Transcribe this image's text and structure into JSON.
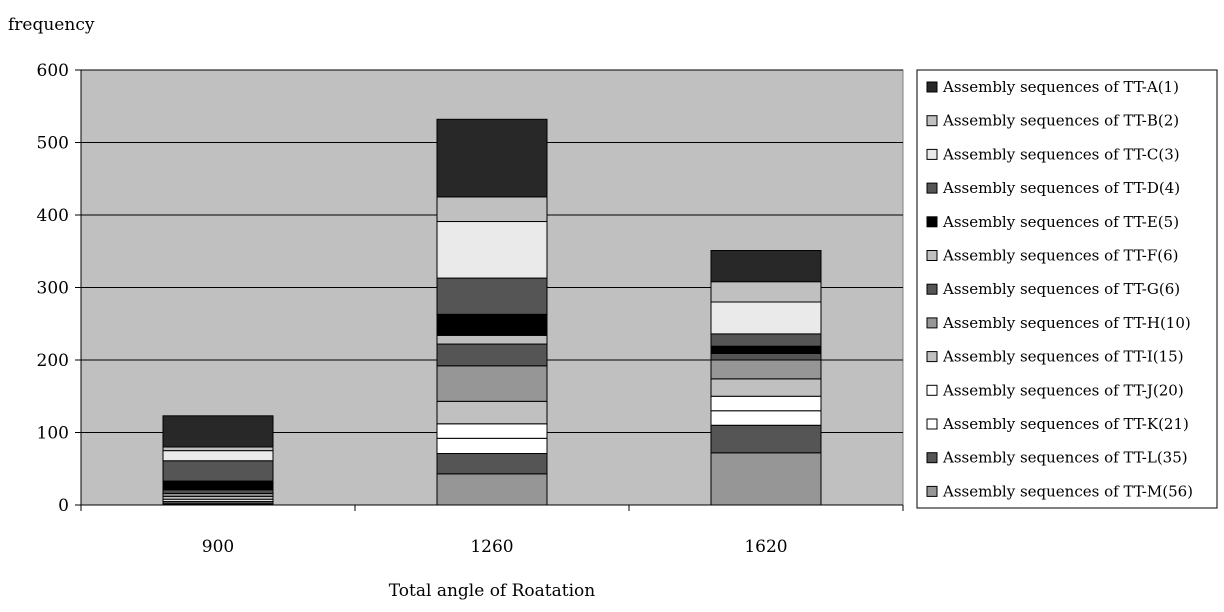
{
  "chart_data": {
    "type": "bar",
    "stacked": true,
    "title": "",
    "xlabel": "Total angle of Roatation",
    "ylabel": "frequency",
    "categories": [
      "900",
      "1260",
      "1620"
    ],
    "ylim": [
      0,
      600
    ],
    "yticks": [
      "0",
      "100",
      "200",
      "300",
      "400",
      "500",
      "600"
    ],
    "grid": true,
    "legend_position": "right",
    "plot_background": "#c0c0c0",
    "series": [
      {
        "name": "Assembly sequences of TT-M(56)",
        "color": "#969696",
        "values": [
          1,
          43,
          72
        ]
      },
      {
        "name": "Assembly sequences of TT-L(35)",
        "color": "#555555",
        "values": [
          2,
          28,
          38
        ]
      },
      {
        "name": "Assembly sequences of TT-K(21)",
        "color": "#ffffff",
        "values": [
          2,
          21,
          20
        ]
      },
      {
        "name": "Assembly sequences of TT-J(20)",
        "color": "#ffffff",
        "values": [
          3,
          20,
          20
        ]
      },
      {
        "name": "Assembly sequences of TT-I(15)",
        "color": "#c0c0c0",
        "values": [
          4,
          31,
          24
        ]
      },
      {
        "name": "Assembly sequences of TT-H(10)",
        "color": "#969696",
        "values": [
          4,
          49,
          26
        ]
      },
      {
        "name": "Assembly sequences of TT-G(6)",
        "color": "#555555",
        "values": [
          5,
          30,
          9
        ]
      },
      {
        "name": "Assembly sequences of TT-F(6)",
        "color": "#c0c0c0",
        "values": [
          0,
          12,
          0
        ]
      },
      {
        "name": "Assembly sequences of TT-E(5)",
        "color": "#000000",
        "values": [
          12,
          29,
          10
        ]
      },
      {
        "name": "Assembly sequences of TT-D(4)",
        "color": "#555555",
        "values": [
          28,
          50,
          17
        ]
      },
      {
        "name": "Assembly sequences of TT-C(3)",
        "color": "#eaeaea",
        "values": [
          14,
          78,
          44
        ]
      },
      {
        "name": "Assembly sequences of TT-B(2)",
        "color": "#c0c0c0",
        "values": [
          5,
          34,
          28
        ]
      },
      {
        "name": "Assembly sequences of TT-A(1)",
        "color": "#282828",
        "values": [
          43,
          107,
          43
        ]
      }
    ],
    "legend_order": [
      "Assembly sequences of TT-A(1)",
      "Assembly sequences of TT-B(2)",
      "Assembly sequences of TT-C(3)",
      "Assembly sequences of TT-D(4)",
      "Assembly sequences of TT-E(5)",
      "Assembly sequences of TT-F(6)",
      "Assembly sequences of TT-G(6)",
      "Assembly sequences of TT-H(10)",
      "Assembly sequences of TT-I(15)",
      "Assembly sequences of TT-J(20)",
      "Assembly sequences of TT-K(21)",
      "Assembly sequences of TT-L(35)",
      "Assembly sequences of TT-M(56)"
    ]
  }
}
